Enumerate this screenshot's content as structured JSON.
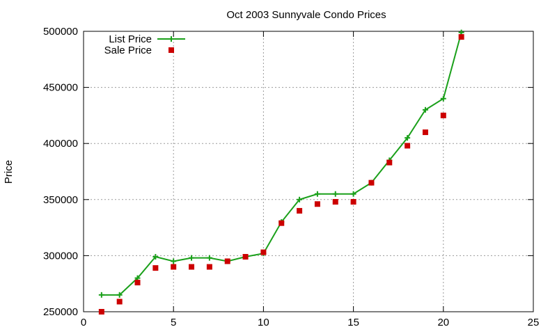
{
  "chart_data": {
    "type": "line",
    "title": "Oct 2003 Sunnyvale Condo Prices",
    "xlabel": "",
    "ylabel": "Price",
    "xlim": [
      0,
      25
    ],
    "ylim": [
      250000,
      500000
    ],
    "xticks": [
      0,
      5,
      10,
      15,
      20,
      25
    ],
    "yticks": [
      250000,
      300000,
      350000,
      400000,
      450000,
      500000
    ],
    "grid": true,
    "legend_position": "top-left",
    "x": [
      1,
      2,
      3,
      4,
      5,
      6,
      7,
      8,
      9,
      10,
      11,
      12,
      13,
      14,
      15,
      16,
      17,
      18,
      19,
      20,
      21
    ],
    "series": [
      {
        "name": "List Price",
        "style": "linespoints",
        "marker": "plus",
        "color": "#1aa01a",
        "values": [
          265000,
          265000,
          280000,
          299000,
          295000,
          298000,
          298000,
          295000,
          299000,
          302000,
          330000,
          350000,
          355000,
          355000,
          355000,
          365000,
          385000,
          405000,
          430000,
          440000,
          499000
        ]
      },
      {
        "name": "Sale Price",
        "style": "points",
        "marker": "square",
        "color": "#cc0000",
        "values": [
          250000,
          259000,
          276000,
          289000,
          290000,
          290000,
          290000,
          295000,
          299000,
          303000,
          329000,
          340000,
          346000,
          348000,
          348000,
          365000,
          383000,
          398000,
          410000,
          425000,
          495000
        ]
      }
    ]
  }
}
